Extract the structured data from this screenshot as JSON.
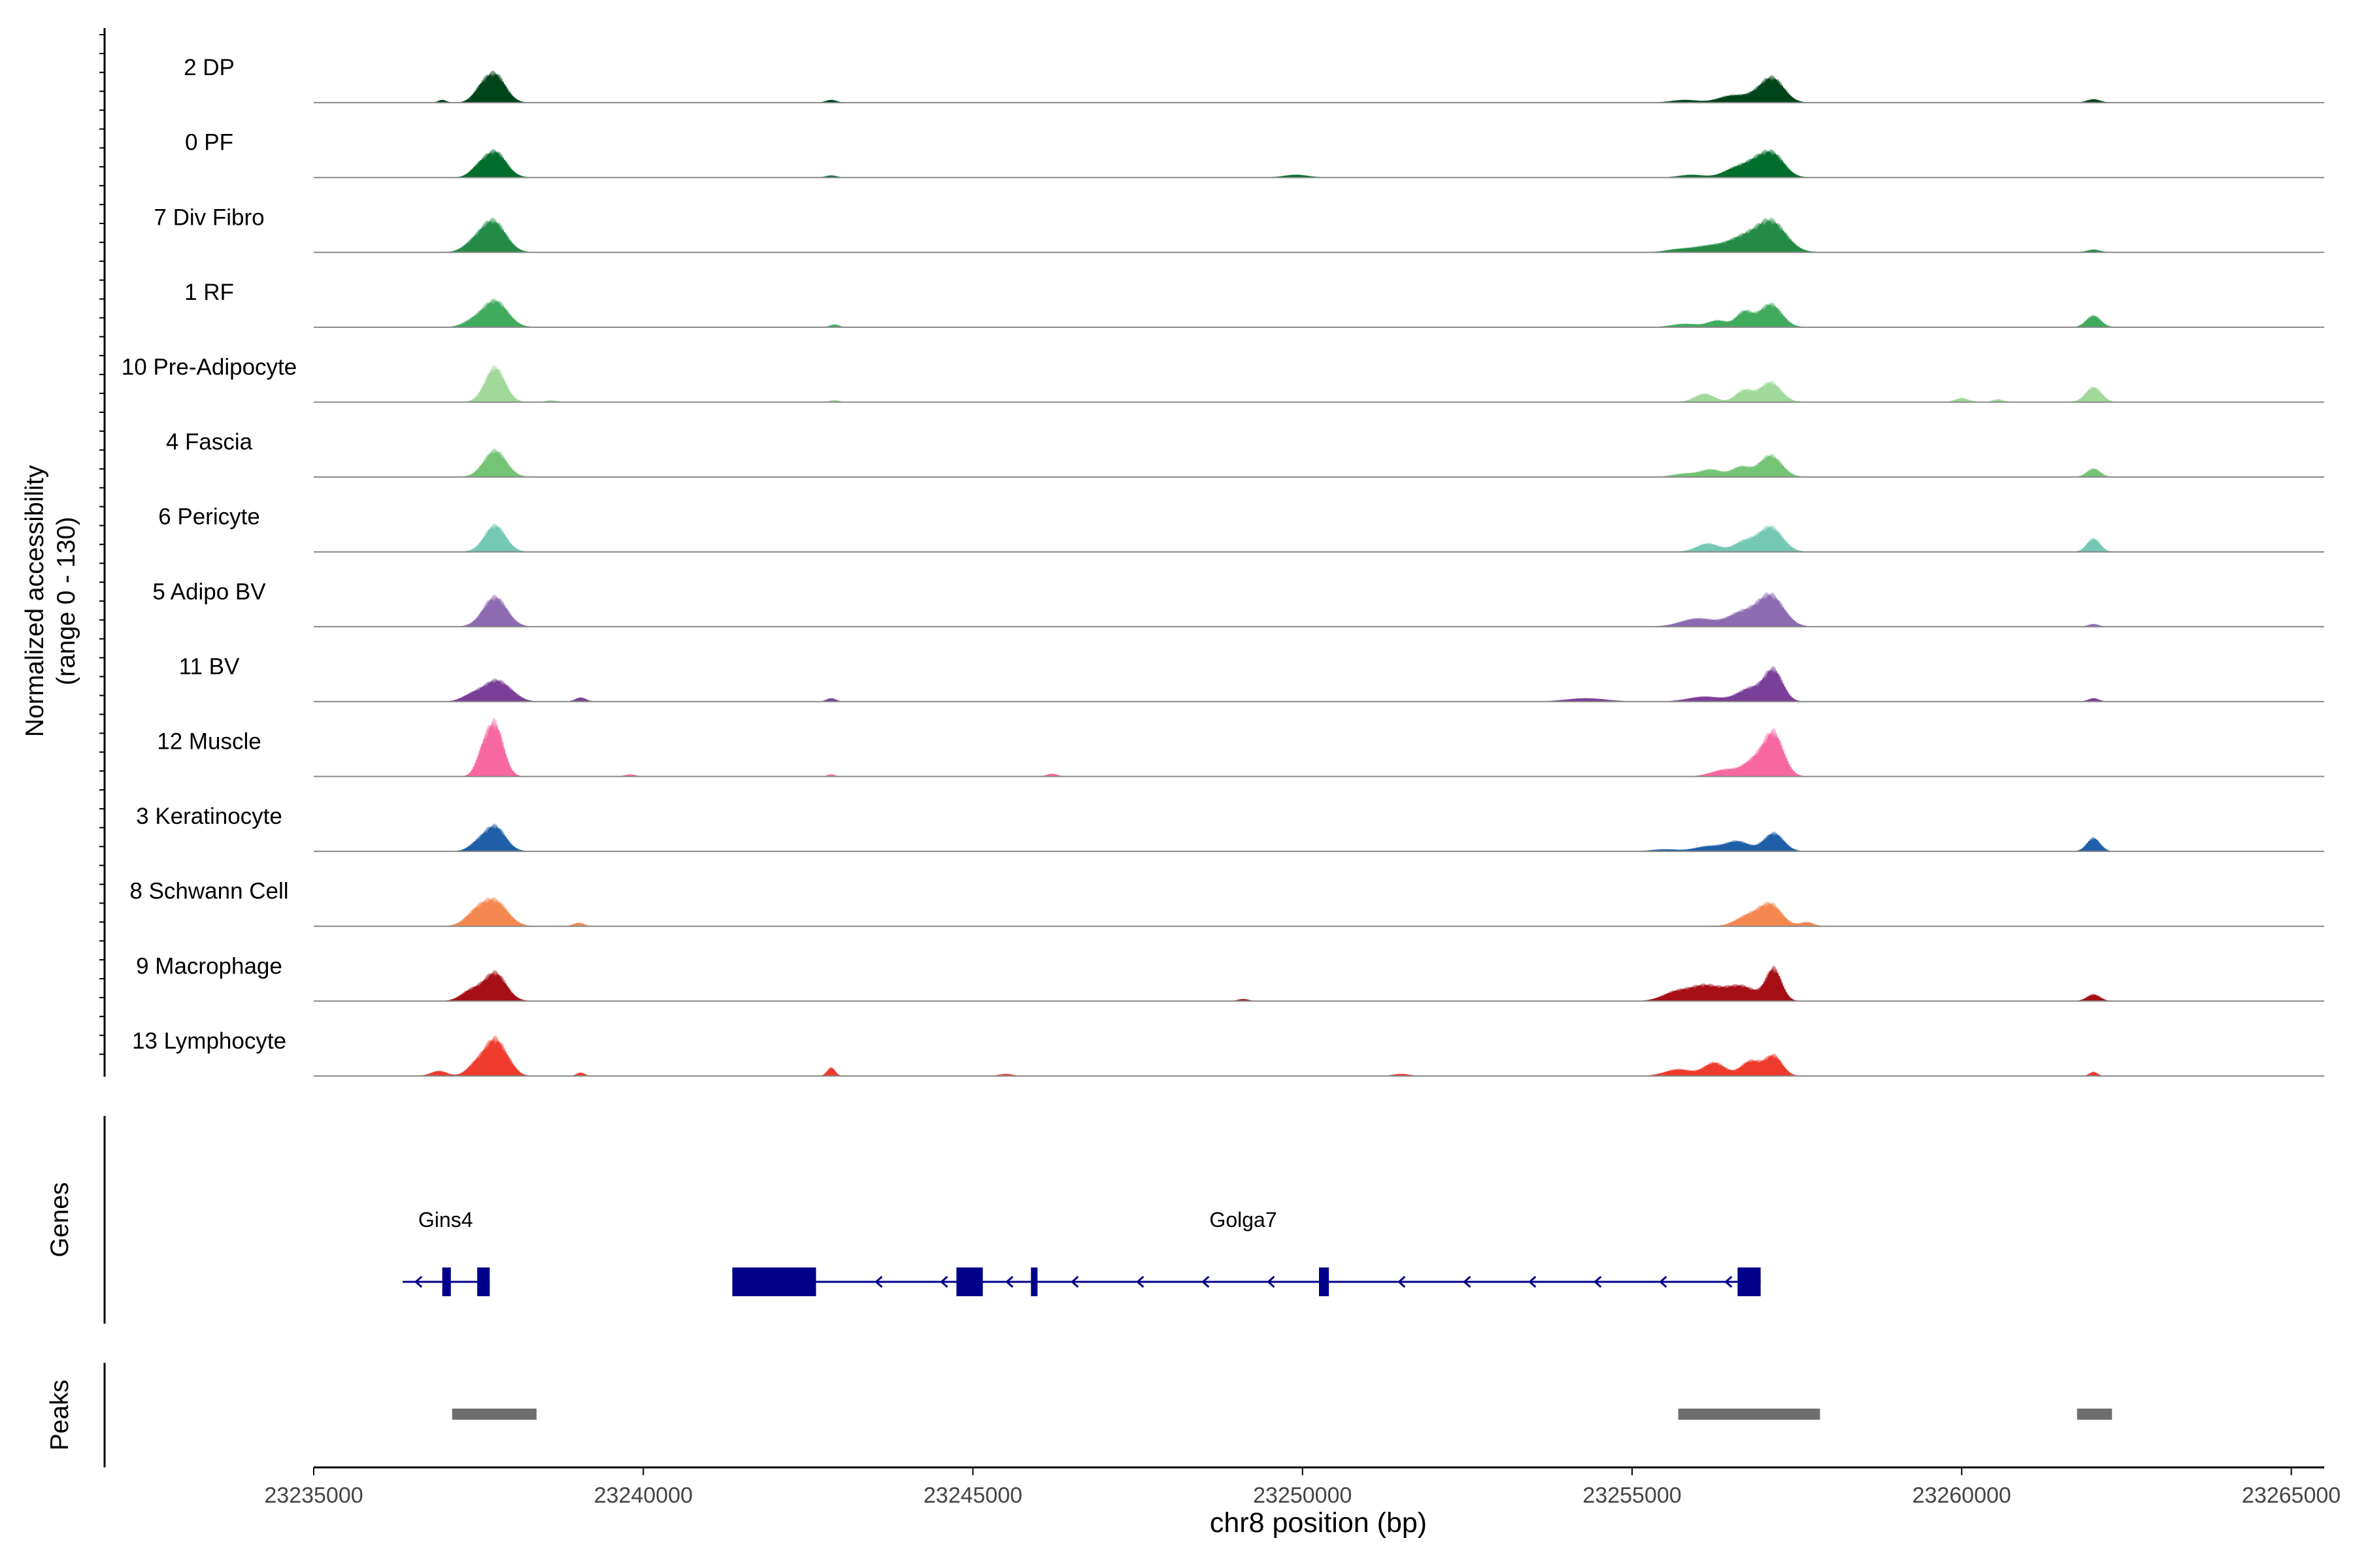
{
  "chart_data": {
    "type": "area",
    "title": "",
    "xlabel": "chr8 position (bp)",
    "ylabel": "Normalized accessibility",
    "ylabel2": "(range 0 - 130)",
    "xlim": [
      23235000,
      23265500
    ],
    "ylim": [
      0,
      130
    ],
    "x_ticks": [
      23235000,
      23240000,
      23245000,
      23250000,
      23255000,
      23260000,
      23265000
    ],
    "x_tick_labels": [
      "23235000",
      "23240000",
      "23245000",
      "23250000",
      "23255000",
      "23260000",
      "23265000"
    ],
    "tracks": [
      {
        "name": "2 DP",
        "color": "#00441b",
        "peaks": [
          [
            23237750,
            0.85,
            160
          ],
          [
            23237520,
            0.25,
            120
          ],
          [
            23256950,
            0.25,
            200
          ],
          [
            23257150,
            0.6,
            170
          ],
          [
            23256500,
            0.2,
            200
          ],
          [
            23255800,
            0.08,
            200
          ],
          [
            23262000,
            0.1,
            100
          ],
          [
            23242850,
            0.08,
            80
          ],
          [
            23236950,
            0.08,
            60
          ]
        ]
      },
      {
        "name": "0 PF",
        "color": "#006d2c",
        "peaks": [
          [
            23237750,
            0.78,
            170
          ],
          [
            23237480,
            0.2,
            120
          ],
          [
            23257150,
            0.65,
            170
          ],
          [
            23256600,
            0.3,
            200
          ],
          [
            23256900,
            0.35,
            160
          ],
          [
            23249900,
            0.08,
            180
          ],
          [
            23242850,
            0.06,
            80
          ],
          [
            23255900,
            0.08,
            180
          ]
        ]
      },
      {
        "name": "7 Div Fibro",
        "color": "#238b45",
        "peaks": [
          [
            23237720,
            0.95,
            190
          ],
          [
            23237400,
            0.2,
            150
          ],
          [
            23257100,
            0.95,
            230
          ],
          [
            23256650,
            0.35,
            200
          ],
          [
            23256200,
            0.2,
            250
          ],
          [
            23255700,
            0.08,
            200
          ],
          [
            23262000,
            0.08,
            100
          ]
        ]
      },
      {
        "name": "1 RF",
        "color": "#41ab5d",
        "peaks": [
          [
            23237750,
            0.8,
            190
          ],
          [
            23237400,
            0.15,
            150
          ],
          [
            23257100,
            0.7,
            170
          ],
          [
            23256700,
            0.45,
            120
          ],
          [
            23256300,
            0.2,
            150
          ],
          [
            23255800,
            0.1,
            200
          ],
          [
            23262000,
            0.35,
            110
          ],
          [
            23242900,
            0.08,
            70
          ]
        ]
      },
      {
        "name": "10 Pre-Adipocyte",
        "color": "#a1d99b",
        "peaks": [
          [
            23237750,
            1.05,
            150
          ],
          [
            23257100,
            0.6,
            160
          ],
          [
            23256700,
            0.35,
            130
          ],
          [
            23256100,
            0.25,
            150
          ],
          [
            23262000,
            0.45,
            120
          ],
          [
            23260000,
            0.12,
            100
          ],
          [
            23260550,
            0.08,
            80
          ],
          [
            23242900,
            0.06,
            70
          ],
          [
            23238600,
            0.05,
            90
          ]
        ]
      },
      {
        "name": "4 Fascia",
        "color": "#74c476",
        "peaks": [
          [
            23237750,
            0.8,
            170
          ],
          [
            23257100,
            0.65,
            170
          ],
          [
            23256650,
            0.3,
            140
          ],
          [
            23256200,
            0.22,
            160
          ],
          [
            23255800,
            0.1,
            180
          ],
          [
            23262000,
            0.25,
            100
          ]
        ]
      },
      {
        "name": "6 Pericyte",
        "color": "#74c8b4",
        "peaks": [
          [
            23237750,
            0.8,
            160
          ],
          [
            23257100,
            0.75,
            180
          ],
          [
            23256700,
            0.3,
            160
          ],
          [
            23256150,
            0.25,
            170
          ],
          [
            23262000,
            0.4,
            100
          ]
        ]
      },
      {
        "name": "5 Adipo BV",
        "color": "#8c6bb1",
        "peaks": [
          [
            23237750,
            0.9,
            180
          ],
          [
            23257100,
            0.95,
            200
          ],
          [
            23256650,
            0.4,
            200
          ],
          [
            23256000,
            0.25,
            260
          ],
          [
            23262000,
            0.08,
            80
          ]
        ]
      },
      {
        "name": "11 BV",
        "color": "#7a3f98",
        "peaks": [
          [
            23237750,
            0.6,
            180
          ],
          [
            23237400,
            0.2,
            150
          ],
          [
            23238000,
            0.15,
            150
          ],
          [
            23257150,
            0.9,
            140
          ],
          [
            23256800,
            0.4,
            200
          ],
          [
            23256100,
            0.15,
            250
          ],
          [
            23254300,
            0.1,
            300
          ],
          [
            23239050,
            0.12,
            80
          ],
          [
            23242850,
            0.1,
            70
          ],
          [
            23262000,
            0.1,
            80
          ]
        ]
      },
      {
        "name": "12 Muscle",
        "color": "#f768a1",
        "peaks": [
          [
            23237750,
            1.55,
            130
          ],
          [
            23237550,
            0.5,
            100
          ],
          [
            23257150,
            1.25,
            150
          ],
          [
            23256850,
            0.45,
            170
          ],
          [
            23256400,
            0.2,
            200
          ],
          [
            23246200,
            0.08,
            80
          ],
          [
            23239800,
            0.06,
            80
          ],
          [
            23242850,
            0.06,
            60
          ]
        ]
      },
      {
        "name": "3 Keratinocyte",
        "color": "#1f5fa8",
        "peaks": [
          [
            23237750,
            0.75,
            160
          ],
          [
            23237480,
            0.2,
            130
          ],
          [
            23257150,
            0.55,
            150
          ],
          [
            23256600,
            0.3,
            180
          ],
          [
            23256150,
            0.15,
            200
          ],
          [
            23262000,
            0.4,
            100
          ],
          [
            23255500,
            0.06,
            200
          ]
        ]
      },
      {
        "name": "8 Schwann Cell",
        "color": "#f4874f",
        "peaks": [
          [
            23237750,
            0.75,
            190
          ],
          [
            23237450,
            0.35,
            160
          ],
          [
            23257100,
            0.65,
            170
          ],
          [
            23256750,
            0.3,
            180
          ],
          [
            23257650,
            0.12,
            100
          ],
          [
            23239020,
            0.1,
            80
          ]
        ]
      },
      {
        "name": "9 Macrophage",
        "color": "#a50f15",
        "peaks": [
          [
            23237750,
            0.85,
            170
          ],
          [
            23237380,
            0.3,
            150
          ],
          [
            23257150,
            0.95,
            120
          ],
          [
            23256650,
            0.45,
            230
          ],
          [
            23256100,
            0.45,
            230
          ],
          [
            23255650,
            0.25,
            200
          ],
          [
            23262000,
            0.2,
            100
          ],
          [
            23249100,
            0.06,
            80
          ]
        ]
      },
      {
        "name": "13 Lymphocyte",
        "color": "#ef3b2c",
        "peaks": [
          [
            23237750,
            1.1,
            160
          ],
          [
            23237450,
            0.3,
            130
          ],
          [
            23236900,
            0.15,
            120
          ],
          [
            23238000,
            0.12,
            100
          ],
          [
            23257150,
            0.6,
            130
          ],
          [
            23256800,
            0.45,
            150
          ],
          [
            23256250,
            0.4,
            160
          ],
          [
            23255700,
            0.2,
            200
          ],
          [
            23242850,
            0.25,
            60
          ],
          [
            23239050,
            0.1,
            60
          ],
          [
            23262000,
            0.12,
            60
          ],
          [
            23245500,
            0.06,
            100
          ],
          [
            23251500,
            0.06,
            120
          ]
        ]
      }
    ],
    "genes_label": "Genes",
    "genes": [
      {
        "name": "Gins4",
        "label_x": 23237000,
        "strand": "-",
        "span": [
          23236350,
          23237670
        ],
        "exons": [
          [
            23236950,
            23237080,
            "thin"
          ],
          [
            23237480,
            23237670,
            "thick"
          ]
        ]
      },
      {
        "name": "Golga7",
        "label_x": 23249100,
        "strand": "-",
        "span": [
          23241350,
          23256950
        ],
        "exons": [
          [
            23241350,
            23242620,
            "thick"
          ],
          [
            23244750,
            23245150,
            "thick"
          ],
          [
            23245880,
            23245980,
            "thick"
          ],
          [
            23250250,
            23250400,
            "thick"
          ],
          [
            23256600,
            23256950,
            "thick"
          ]
        ]
      }
    ],
    "peaks_label": "Peaks",
    "peak_regions": [
      [
        23237100,
        23238380
      ],
      [
        23255700,
        23257850
      ],
      [
        23261750,
        23262280
      ]
    ]
  }
}
